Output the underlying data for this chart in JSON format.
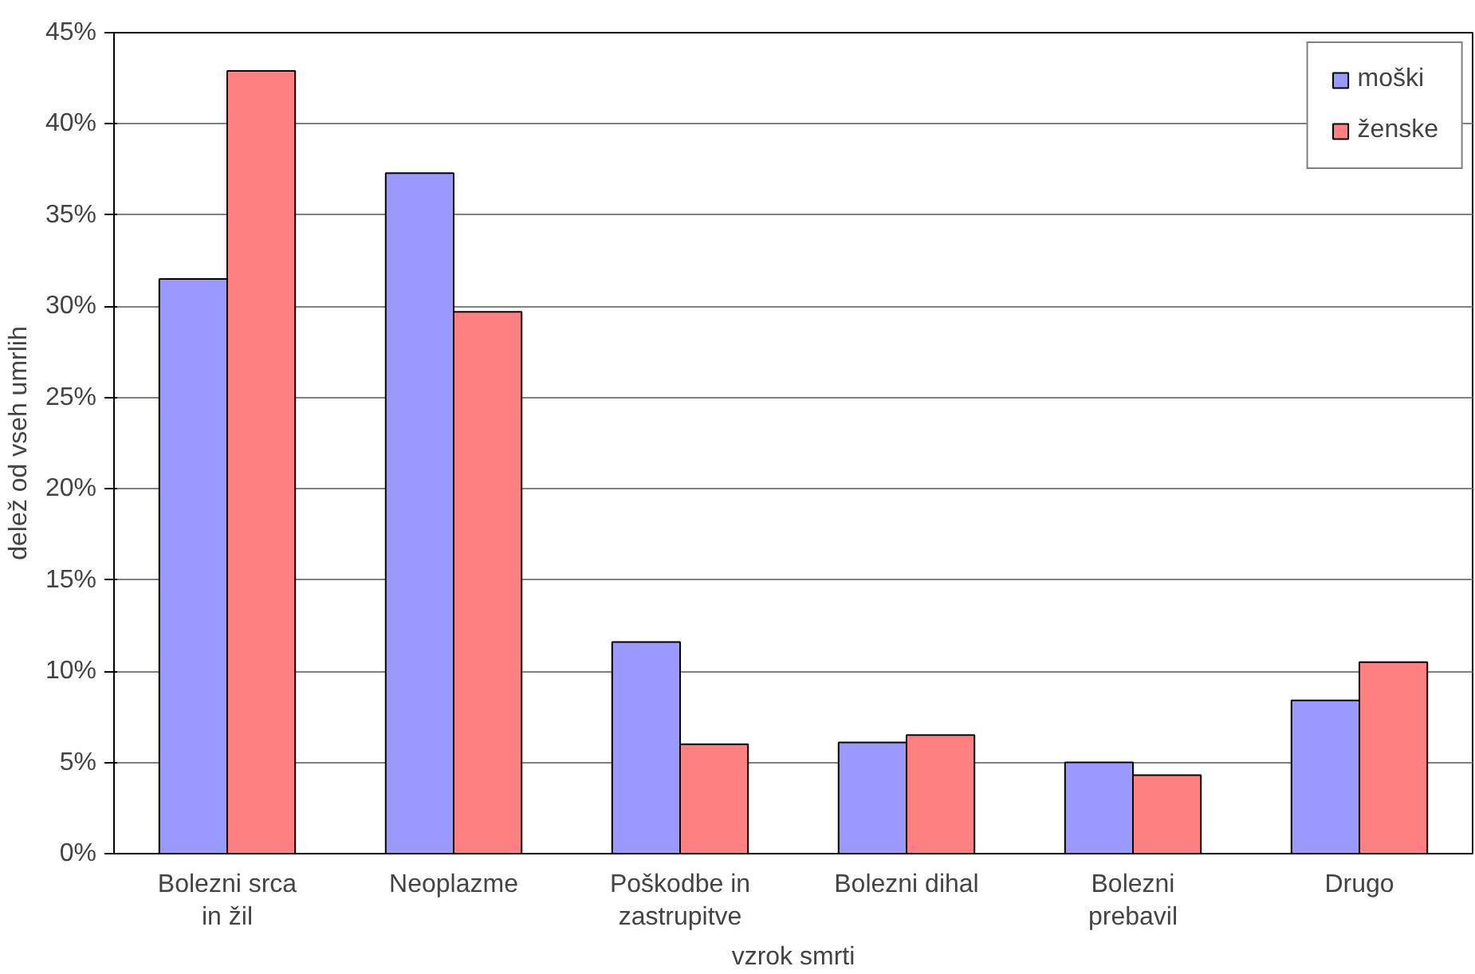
{
  "chart_data": {
    "type": "bar",
    "xlabel": "vzrok smrti",
    "ylabel": "delež od vseh umrlih",
    "categories": [
      "Bolezni srca\nin žil",
      "Neoplazme",
      "Poškodbe in\nzastrupitve",
      "Bolezni dihal",
      "Bolezni\nprebavil",
      "Drugo"
    ],
    "series": [
      {
        "name": "moški",
        "color": "#9999ff",
        "values": [
          31.5,
          37.3,
          11.6,
          6.1,
          5.0,
          8.4
        ]
      },
      {
        "name": "ženske",
        "color": "#ff8080",
        "values": [
          42.9,
          29.7,
          6.0,
          6.5,
          4.3,
          10.5
        ]
      }
    ],
    "ylim": [
      0,
      45
    ],
    "yticks": [
      {
        "value": 0,
        "label": "0%"
      },
      {
        "value": 5,
        "label": "5%"
      },
      {
        "value": 10,
        "label": "10%"
      },
      {
        "value": 15,
        "label": "15%"
      },
      {
        "value": 20,
        "label": "20%"
      },
      {
        "value": 25,
        "label": "25%"
      },
      {
        "value": 30,
        "label": "30%"
      },
      {
        "value": 35,
        "label": "35%"
      },
      {
        "value": 40,
        "label": "40%"
      },
      {
        "value": 45,
        "label": "45%"
      }
    ],
    "grid": "y",
    "legend": "top right"
  }
}
